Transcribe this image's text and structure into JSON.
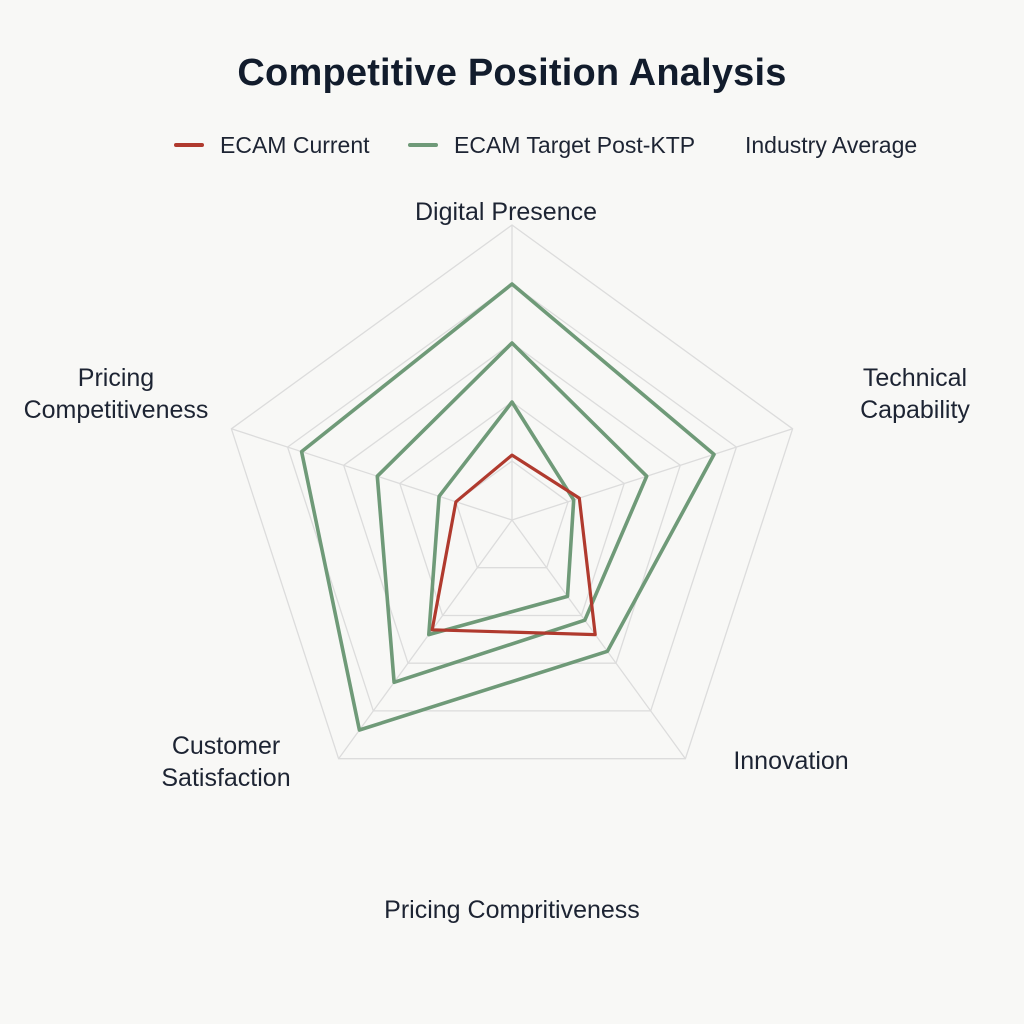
{
  "chart_data": {
    "type": "radar",
    "title": "Competitive Position Analysis",
    "axes": [
      [
        "Digital Presence"
      ],
      [
        "Technical",
        "Capability"
      ],
      [
        "Innovation"
      ],
      [
        "Customer",
        "Satisfaction"
      ],
      [
        "Pricing",
        "Competitiveness"
      ]
    ],
    "bottom_label": "Pricing Compritiveness",
    "rmax": 10,
    "grid_levels": [
      2,
      4,
      6,
      8,
      10
    ],
    "grid": true,
    "legend_position": "top",
    "series": [
      {
        "name": "ECAM Current",
        "color": "#b03a2e",
        "values": [
          2.2,
          2.4,
          4.8,
          4.6,
          2.0
        ]
      },
      {
        "name": "ECAM Target Post-KTP",
        "color": "#6f9a78",
        "values": [
          8.0,
          7.2,
          5.5,
          8.8,
          7.5
        ]
      },
      {
        "name": "",
        "color": "#6f9a78",
        "values": [
          6.0,
          4.8,
          4.2,
          6.8,
          4.8
        ]
      },
      {
        "name": "",
        "color": "#6f9a78",
        "values": [
          4.0,
          2.2,
          3.2,
          4.8,
          2.6
        ]
      }
    ],
    "legend": [
      {
        "label": "ECAM Current",
        "color": "#b03a2e",
        "swatch": true
      },
      {
        "label": "ECAM Target Post-KTP",
        "color": "#6f9a78",
        "swatch": true
      },
      {
        "label": "Industry Average",
        "color": "",
        "swatch": false
      }
    ]
  }
}
